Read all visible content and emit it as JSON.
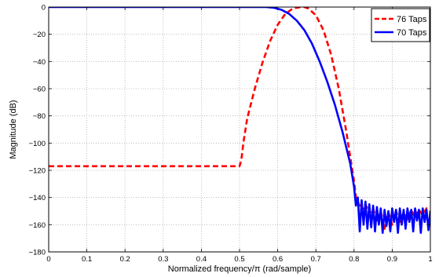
{
  "chart_data": {
    "type": "line",
    "xlabel": "Normalized frequency/π (rad/sample)",
    "ylabel": "Magnitude (dB)",
    "xlim": [
      0,
      1
    ],
    "ylim": [
      -180,
      0
    ],
    "xticks": [
      0,
      0.1,
      0.2,
      0.3,
      0.4,
      0.5,
      0.6,
      0.7,
      0.8,
      0.9,
      1
    ],
    "xtick_labels": [
      "0",
      "0.1",
      "0.2",
      "0.3",
      "0.4",
      "0.5",
      "0.6",
      "0.7",
      "0.8",
      "0.9",
      "1"
    ],
    "yticks": [
      0,
      -20,
      -40,
      -60,
      -80,
      -100,
      -120,
      -140,
      -160,
      -180
    ],
    "ytick_labels": [
      "0",
      "−20",
      "−40",
      "−60",
      "−80",
      "−100",
      "−120",
      "−140",
      "−160",
      "−180"
    ],
    "grid": true,
    "legend_position": "top-right",
    "series": [
      {
        "name": "76 Taps",
        "color": "#ff0000",
        "style": "dashed",
        "x": [
          0,
          0.1,
          0.2,
          0.3,
          0.4,
          0.5,
          0.505,
          0.51,
          0.52,
          0.54,
          0.56,
          0.58,
          0.6,
          0.62,
          0.64,
          0.66,
          0.67,
          0.68,
          0.7,
          0.72,
          0.74,
          0.76,
          0.78,
          0.79,
          0.8,
          0.805,
          0.81,
          0.82,
          0.83,
          0.84,
          0.85,
          0.86,
          0.87,
          0.88,
          0.89,
          0.9,
          0.91,
          0.92,
          0.93,
          0.94,
          0.95,
          0.96,
          0.97,
          0.98,
          0.99,
          1.0
        ],
        "y": [
          -117,
          -117,
          -117,
          -117,
          -117,
          -117,
          -112,
          -100,
          -82,
          -60,
          -41,
          -25,
          -13,
          -5,
          -1,
          0,
          0,
          -1,
          -6,
          -17,
          -35,
          -60,
          -92,
          -110,
          -128,
          -140,
          -143,
          -150,
          -145,
          -152,
          -148,
          -158,
          -150,
          -163,
          -151,
          -160,
          -150,
          -158,
          -151,
          -156,
          -149,
          -155,
          -149,
          -153,
          -148,
          -150
        ]
      },
      {
        "name": "70 Taps",
        "color": "#0000ff",
        "style": "solid",
        "x": [
          0,
          0.1,
          0.2,
          0.3,
          0.4,
          0.5,
          0.55,
          0.57,
          0.59,
          0.61,
          0.63,
          0.65,
          0.67,
          0.69,
          0.71,
          0.73,
          0.75,
          0.77,
          0.79,
          0.8,
          0.805,
          0.81,
          0.815,
          0.82,
          0.825,
          0.83,
          0.835,
          0.84,
          0.845,
          0.85,
          0.855,
          0.86,
          0.865,
          0.87,
          0.875,
          0.88,
          0.885,
          0.89,
          0.895,
          0.9,
          0.905,
          0.91,
          0.915,
          0.92,
          0.925,
          0.93,
          0.935,
          0.94,
          0.945,
          0.95,
          0.955,
          0.96,
          0.965,
          0.97,
          0.975,
          0.98,
          0.985,
          0.99,
          0.995,
          1.0
        ],
        "y": [
          0,
          0,
          0,
          0,
          0,
          0,
          0,
          0,
          -0.5,
          -2,
          -5,
          -10,
          -17,
          -27,
          -40,
          -55,
          -72,
          -92,
          -115,
          -132,
          -146,
          -140,
          -165,
          -142,
          -160,
          -143,
          -163,
          -145,
          -162,
          -146,
          -165,
          -147,
          -160,
          -148,
          -166,
          -149,
          -161,
          -150,
          -165,
          -148,
          -158,
          -149,
          -166,
          -148,
          -160,
          -149,
          -163,
          -148,
          -158,
          -149,
          -165,
          -148,
          -157,
          -149,
          -166,
          -148,
          -158,
          -149,
          -164,
          -150
        ]
      }
    ]
  }
}
